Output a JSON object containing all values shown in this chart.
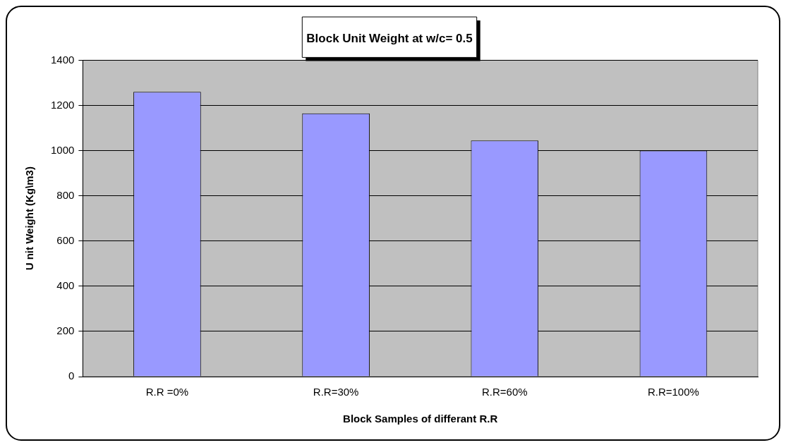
{
  "chart_data": {
    "type": "bar",
    "title": "Block Unit Weight at w/c= 0.5",
    "xlabel": "Block Samples of differant R.R",
    "ylabel": "U nit Weight (Kg\\m3)",
    "categories": [
      "R.R =0%",
      "R.R=30%",
      "R.R=60%",
      "R.R=100%"
    ],
    "values": [
      1260,
      1165,
      1045,
      1000
    ],
    "color": "#9999ff",
    "ylim": [
      0,
      1400
    ],
    "yticks": [
      0,
      200,
      400,
      600,
      800,
      1000,
      1200,
      1400
    ],
    "grid": "y",
    "legend": false
  }
}
